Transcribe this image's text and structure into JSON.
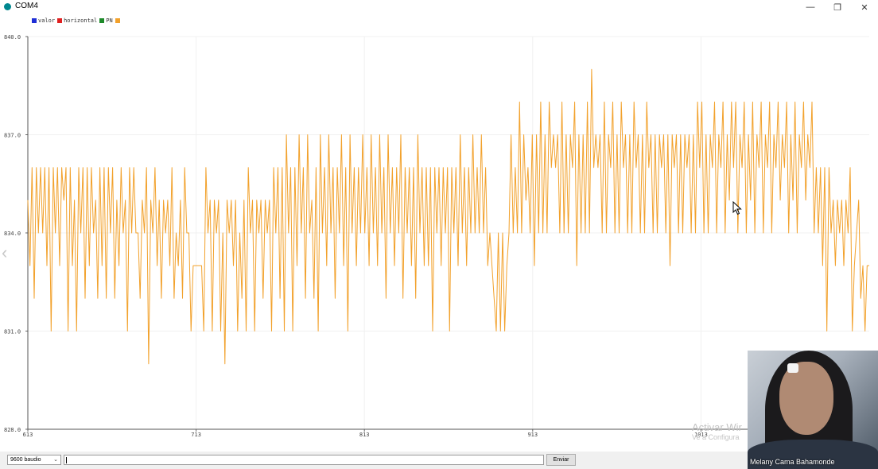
{
  "window": {
    "title": "COM4",
    "controls": {
      "minimize": "—",
      "maximize": "❐",
      "close": "✕"
    }
  },
  "legend": [
    {
      "label": "valor",
      "color": "#1f2fd6"
    },
    {
      "label": "horizontal",
      "color": "#e02020"
    },
    {
      "label": "PN",
      "color": "#1d8a2a"
    },
    {
      "label": "",
      "color": "#f2a12b"
    }
  ],
  "chart_data": {
    "type": "line",
    "ylim": [
      828,
      840
    ],
    "y_ticks": [
      "840.0",
      "837.0",
      "834.0",
      "831.0",
      "828.0"
    ],
    "y_tick_values": [
      840,
      837,
      834,
      831,
      828
    ],
    "x_ticks": [
      "613",
      "713",
      "813",
      "913",
      "1013"
    ],
    "x_tick_values": [
      613,
      713,
      813,
      913,
      1013
    ],
    "x_range": [
      613,
      1113
    ],
    "grid": true,
    "legend_position": "top-left",
    "series": [
      {
        "color": "#f2a12b",
        "values": [
          835,
          833,
          836,
          832,
          836,
          834,
          836,
          834,
          836,
          833,
          836,
          831,
          836,
          834,
          836,
          833,
          836,
          835,
          836,
          831,
          836,
          833,
          835,
          831,
          836,
          834,
          836,
          832,
          836,
          833,
          836,
          834,
          835,
          832,
          836,
          833,
          836,
          832,
          836,
          834,
          836,
          832,
          835,
          833,
          836,
          834,
          835,
          831,
          836,
          834,
          836,
          834,
          834,
          832,
          835,
          834,
          836,
          830,
          835,
          834,
          836,
          833,
          835,
          832,
          835,
          834,
          835,
          833,
          836,
          832,
          834,
          833,
          835,
          832,
          836,
          834,
          834,
          831,
          833,
          833,
          833,
          833,
          833,
          831,
          836,
          834,
          835,
          831,
          835,
          834,
          835,
          831,
          834,
          830,
          835,
          834,
          835,
          833,
          835,
          831,
          834,
          832,
          835,
          831,
          836,
          834,
          835,
          831,
          835,
          834,
          835,
          832,
          835,
          834,
          835,
          831,
          836,
          834,
          836,
          832,
          836,
          831,
          837,
          834,
          836,
          831,
          836,
          833,
          837,
          834,
          836,
          832,
          837,
          834,
          835,
          832,
          836,
          831,
          837,
          834,
          836,
          833,
          837,
          834,
          836,
          832,
          836,
          834,
          837,
          833,
          836,
          831,
          837,
          834,
          836,
          833,
          836,
          834,
          837,
          834,
          836,
          833,
          837,
          834,
          836,
          833,
          837,
          834,
          836,
          832,
          837,
          834,
          836,
          833,
          836,
          834,
          837,
          832,
          836,
          834,
          836,
          833,
          836,
          832,
          837,
          834,
          836,
          833,
          836,
          833,
          836,
          831,
          836,
          834,
          836,
          833,
          836,
          834,
          836,
          831,
          836,
          834,
          836,
          833,
          837,
          834,
          836,
          833,
          836,
          834,
          837,
          834,
          836,
          834,
          837,
          834,
          836,
          833,
          834,
          833,
          832,
          831,
          834,
          831,
          834,
          831,
          833,
          834,
          837,
          834,
          836,
          834,
          838,
          834,
          837,
          835,
          836,
          834,
          837,
          833,
          837,
          834,
          838,
          834,
          837,
          834,
          838,
          836,
          837,
          836,
          837,
          834,
          838,
          834,
          837,
          834,
          837,
          836,
          838,
          833,
          837,
          834,
          837,
          834,
          838,
          834,
          839,
          836,
          837,
          836,
          837,
          834,
          838,
          834,
          837,
          836,
          838,
          834,
          837,
          834,
          838,
          836,
          837,
          834,
          837,
          834,
          838,
          836,
          837,
          834,
          837,
          834,
          838,
          836,
          837,
          834,
          837,
          834,
          837,
          836,
          837,
          834,
          837,
          833,
          837,
          836,
          837,
          834,
          837,
          834,
          837,
          836,
          837,
          834,
          837,
          834,
          838,
          836,
          838,
          834,
          837,
          834,
          837,
          836,
          838,
          834,
          837,
          836,
          838,
          834,
          837,
          835,
          838,
          836,
          838,
          834,
          837,
          836,
          838,
          834,
          837,
          835,
          838,
          834,
          837,
          836,
          838,
          834,
          837,
          836,
          838,
          834,
          837,
          836,
          838,
          835,
          837,
          836,
          838,
          834,
          837,
          835,
          838,
          834,
          837,
          836,
          838,
          835,
          837,
          836,
          838,
          834,
          836,
          834,
          836,
          833,
          836,
          831,
          836,
          834,
          835,
          833,
          835,
          834,
          835,
          833,
          835,
          834,
          836,
          831,
          833,
          834,
          835,
          832,
          833,
          831,
          833,
          833
        ]
      }
    ]
  },
  "footer": {
    "baud_value": "9600 baudio",
    "send_input_value": "",
    "send_button_label": "Enviar"
  },
  "nav_prev_glyph": "‹",
  "watermark": {
    "line1": "Activar Wir",
    "line2": "Ve a Configura"
  },
  "webcam": {
    "participant_name": "Melany Cama Bahamonde"
  }
}
